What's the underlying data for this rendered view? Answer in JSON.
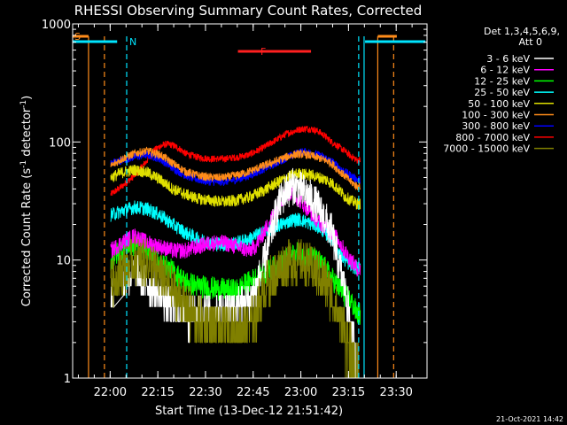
{
  "chart_data": {
    "type": "line",
    "title": "RHESSI Observing Summary Count Rates, Corrected",
    "xlabel": "Start Time (13-Dec-12 21:51:42)",
    "ylabel_main": "Corrected Count Rate (s",
    "ylabel_sup1": "-1",
    "ylabel_mid": " detector",
    "ylabel_sup2": "-1",
    "ylabel_end": ")",
    "yscale": "log",
    "ylim": [
      1,
      1000
    ],
    "xlim_min": [
      -3.5,
      108
    ],
    "x_ticks": [
      {
        "m": 8.3,
        "label": "22:00"
      },
      {
        "m": 23.3,
        "label": "22:15"
      },
      {
        "m": 38.3,
        "label": "22:30"
      },
      {
        "m": 53.3,
        "label": "22:45"
      },
      {
        "m": 68.3,
        "label": "23:00"
      },
      {
        "m": 83.3,
        "label": "23:15"
      },
      {
        "m": 98.3,
        "label": "23:30"
      }
    ],
    "y_ticks": [
      {
        "v": 1,
        "label": "1"
      },
      {
        "v": 10,
        "label": "10"
      },
      {
        "v": 100,
        "label": "100"
      },
      {
        "v": 1000,
        "label": "1000"
      }
    ],
    "legend_header": [
      "Det 1,3,4,5,6,9,",
      "Att 0"
    ],
    "legend_position": "right",
    "colors": {
      "saa": "#ff8c1a",
      "night": "#00e5ff",
      "flare": "#ff2020"
    },
    "flags": {
      "saa_label": "S",
      "night_label": "N",
      "flare_label": "F",
      "saa_bar": [
        -3.5,
        1.5
      ],
      "night_bar": [
        -3.5,
        10.5
      ],
      "saa_bar2": [
        92.5,
        98.5
      ],
      "night_bar2": [
        88.5,
        107.5
      ],
      "flare_bar": [
        48.5,
        71.5
      ],
      "solid_orange": [
        1.5,
        92.5
      ],
      "dashed_orange": [
        6.5,
        97.5
      ],
      "solid_cyan": [
        88.2
      ],
      "dashed_cyan": [
        13.5,
        86.5
      ]
    },
    "data_range": [
      8.5,
      87.0
    ],
    "gap_range": [
      9.5,
      12.5
    ],
    "series": [
      {
        "name": "3 - 6 keV",
        "color": "#ffffff",
        "points": [
          [
            8.5,
            5.0
          ],
          [
            12,
            6.5
          ],
          [
            16,
            8.0
          ],
          [
            20,
            6.5
          ],
          [
            24,
            5.0
          ],
          [
            28,
            4.0
          ],
          [
            32,
            3.5
          ],
          [
            36,
            3.5
          ],
          [
            40,
            3.5
          ],
          [
            44,
            3.5
          ],
          [
            48,
            4.0
          ],
          [
            52,
            4.5
          ],
          [
            54,
            5.5
          ],
          [
            56,
            8.0
          ],
          [
            58,
            13
          ],
          [
            60,
            22
          ],
          [
            62,
            32
          ],
          [
            64,
            40
          ],
          [
            66,
            42
          ],
          [
            68,
            40
          ],
          [
            70,
            36
          ],
          [
            72,
            32
          ],
          [
            74,
            27
          ],
          [
            76,
            22
          ],
          [
            78,
            17
          ],
          [
            80,
            10
          ],
          [
            82,
            6
          ],
          [
            84,
            3
          ],
          [
            86,
            1.2
          ]
        ]
      },
      {
        "name": "6 - 12 keV",
        "color": "#ff00ff",
        "points": [
          [
            8.5,
            12
          ],
          [
            12,
            14
          ],
          [
            16,
            16
          ],
          [
            20,
            14
          ],
          [
            24,
            13
          ],
          [
            28,
            12
          ],
          [
            32,
            12
          ],
          [
            36,
            13
          ],
          [
            40,
            14
          ],
          [
            44,
            14
          ],
          [
            48,
            13
          ],
          [
            52,
            12
          ],
          [
            54,
            13
          ],
          [
            56,
            16
          ],
          [
            58,
            20
          ],
          [
            60,
            25
          ],
          [
            62,
            32
          ],
          [
            64,
            37
          ],
          [
            66,
            36
          ],
          [
            68,
            32
          ],
          [
            70,
            28
          ],
          [
            72,
            24
          ],
          [
            74,
            21
          ],
          [
            76,
            19
          ],
          [
            78,
            17
          ],
          [
            80,
            15
          ],
          [
            82,
            12
          ],
          [
            84,
            10
          ],
          [
            86,
            8.5
          ]
        ]
      },
      {
        "name": "12 - 25 keV",
        "color": "#00ff00",
        "points": [
          [
            8.5,
            10
          ],
          [
            12,
            12.5
          ],
          [
            16,
            13.5
          ],
          [
            20,
            12
          ],
          [
            24,
            9.5
          ],
          [
            28,
            8.0
          ],
          [
            32,
            6.5
          ],
          [
            36,
            6.0
          ],
          [
            40,
            5.8
          ],
          [
            44,
            5.6
          ],
          [
            48,
            5.5
          ],
          [
            50,
            6.0
          ],
          [
            54,
            7.0
          ],
          [
            58,
            8.0
          ],
          [
            62,
            9.5
          ],
          [
            66,
            11
          ],
          [
            68,
            11.5
          ],
          [
            70,
            11
          ],
          [
            72,
            10.5
          ],
          [
            74,
            9.5
          ],
          [
            76,
            8.5
          ],
          [
            78,
            7.0
          ],
          [
            80,
            6.0
          ],
          [
            82,
            5.0
          ],
          [
            84,
            4.5
          ],
          [
            86,
            3.5
          ]
        ]
      },
      {
        "name": "25 - 50 keV",
        "color": "#00ffff",
        "points": [
          [
            8.5,
            24
          ],
          [
            12,
            26
          ],
          [
            16,
            28
          ],
          [
            20,
            27
          ],
          [
            24,
            24
          ],
          [
            28,
            20
          ],
          [
            32,
            17
          ],
          [
            36,
            15
          ],
          [
            40,
            14
          ],
          [
            44,
            13.5
          ],
          [
            48,
            14
          ],
          [
            52,
            15
          ],
          [
            56,
            17
          ],
          [
            60,
            19
          ],
          [
            64,
            21
          ],
          [
            66,
            22
          ],
          [
            68,
            22
          ],
          [
            70,
            21
          ],
          [
            72,
            20
          ],
          [
            74,
            19
          ],
          [
            76,
            17
          ],
          [
            78,
            15
          ],
          [
            80,
            12
          ],
          [
            82,
            10
          ],
          [
            84,
            9
          ],
          [
            86,
            8.5
          ]
        ]
      },
      {
        "name": "50 - 100 keV",
        "color": "#e0e000",
        "points": [
          [
            8.5,
            50
          ],
          [
            12,
            55
          ],
          [
            16,
            58
          ],
          [
            20,
            55
          ],
          [
            24,
            48
          ],
          [
            28,
            40
          ],
          [
            32,
            36
          ],
          [
            36,
            33
          ],
          [
            40,
            32
          ],
          [
            44,
            31
          ],
          [
            48,
            32
          ],
          [
            52,
            34
          ],
          [
            56,
            38
          ],
          [
            60,
            44
          ],
          [
            64,
            50
          ],
          [
            66,
            53
          ],
          [
            68,
            54
          ],
          [
            70,
            53
          ],
          [
            72,
            52
          ],
          [
            74,
            50
          ],
          [
            76,
            48
          ],
          [
            78,
            45
          ],
          [
            80,
            40
          ],
          [
            82,
            35
          ],
          [
            84,
            32
          ],
          [
            86,
            30
          ]
        ]
      },
      {
        "name": "100 - 300 keV",
        "color": "#ff8c1a",
        "points": [
          [
            8.5,
            62
          ],
          [
            12,
            72
          ],
          [
            16,
            80
          ],
          [
            20,
            84
          ],
          [
            24,
            78
          ],
          [
            28,
            66
          ],
          [
            32,
            56
          ],
          [
            36,
            52
          ],
          [
            40,
            50
          ],
          [
            44,
            50
          ],
          [
            48,
            52
          ],
          [
            52,
            56
          ],
          [
            56,
            62
          ],
          [
            60,
            68
          ],
          [
            64,
            75
          ],
          [
            66,
            78
          ],
          [
            68,
            79
          ],
          [
            70,
            78
          ],
          [
            72,
            76
          ],
          [
            74,
            73
          ],
          [
            76,
            70
          ],
          [
            78,
            66
          ],
          [
            80,
            58
          ],
          [
            82,
            52
          ],
          [
            84,
            46
          ],
          [
            86,
            42
          ]
        ]
      },
      {
        "name": "300 - 800 keV",
        "color": "#0000ff",
        "points": [
          [
            8.5,
            66
          ],
          [
            12,
            70
          ],
          [
            16,
            75
          ],
          [
            20,
            78
          ],
          [
            24,
            72
          ],
          [
            28,
            60
          ],
          [
            32,
            52
          ],
          [
            36,
            48
          ],
          [
            40,
            46
          ],
          [
            44,
            46
          ],
          [
            48,
            48
          ],
          [
            52,
            52
          ],
          [
            56,
            58
          ],
          [
            60,
            65
          ],
          [
            64,
            74
          ],
          [
            66,
            78
          ],
          [
            68,
            82
          ],
          [
            70,
            82
          ],
          [
            72,
            80
          ],
          [
            74,
            77
          ],
          [
            76,
            73
          ],
          [
            78,
            68
          ],
          [
            80,
            62
          ],
          [
            82,
            56
          ],
          [
            84,
            52
          ],
          [
            86,
            48
          ]
        ]
      },
      {
        "name": "800 - 7000 keV",
        "color": "#ff0000",
        "points": [
          [
            8.5,
            36
          ],
          [
            12,
            42
          ],
          [
            16,
            52
          ],
          [
            20,
            70
          ],
          [
            22,
            84
          ],
          [
            24,
            92
          ],
          [
            26,
            96
          ],
          [
            28,
            94
          ],
          [
            30,
            88
          ],
          [
            32,
            80
          ],
          [
            36,
            74
          ],
          [
            40,
            72
          ],
          [
            44,
            72
          ],
          [
            48,
            74
          ],
          [
            52,
            78
          ],
          [
            56,
            88
          ],
          [
            60,
            102
          ],
          [
            64,
            118
          ],
          [
            68,
            128
          ],
          [
            70,
            130
          ],
          [
            72,
            128
          ],
          [
            74,
            122
          ],
          [
            76,
            112
          ],
          [
            78,
            100
          ],
          [
            80,
            92
          ],
          [
            82,
            84
          ],
          [
            84,
            76
          ],
          [
            86,
            70
          ]
        ]
      },
      {
        "name": "7000 - 15000 keV",
        "color": "#808000",
        "points": [
          [
            8.5,
            6.5
          ],
          [
            12,
            8.0
          ],
          [
            16,
            10
          ],
          [
            20,
            9.5
          ],
          [
            24,
            7.5
          ],
          [
            28,
            5.5
          ],
          [
            32,
            4.0
          ],
          [
            36,
            3.0
          ],
          [
            40,
            2.7
          ],
          [
            44,
            2.6
          ],
          [
            48,
            2.6
          ],
          [
            52,
            2.8
          ],
          [
            54,
            3.5
          ],
          [
            56,
            5
          ],
          [
            58,
            6.5
          ],
          [
            60,
            7.5
          ],
          [
            62,
            8.5
          ],
          [
            64,
            9.5
          ],
          [
            66,
            9.8
          ],
          [
            68,
            9.5
          ],
          [
            70,
            9.0
          ],
          [
            72,
            8.5
          ],
          [
            74,
            7.5
          ],
          [
            76,
            6.5
          ],
          [
            78,
            5.0
          ],
          [
            80,
            3.5
          ],
          [
            82,
            2.5
          ],
          [
            84,
            1.6
          ],
          [
            86,
            1.1
          ]
        ]
      }
    ]
  },
  "footer": {
    "timestamp": "21-Oct-2021 14:42"
  }
}
